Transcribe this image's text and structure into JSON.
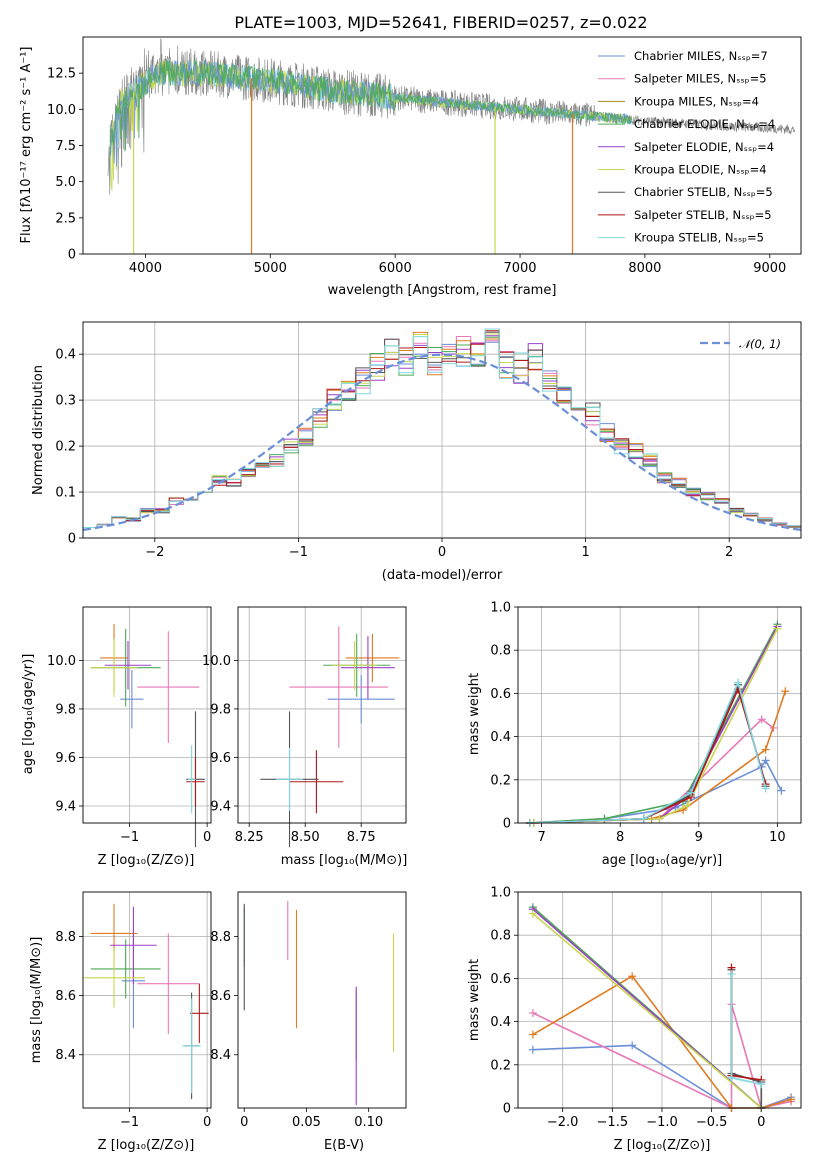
{
  "figure": {
    "title": "PLATE=1003, MJD=52641, FIBERID=0257, z=0.022"
  },
  "colors": {
    "model_palette": [
      "#6a8fd8",
      "#e878b8",
      "#a88c1a",
      "#4caa56",
      "#9a40c8",
      "#c8d650",
      "#555555",
      "#b01818",
      "#80d8e0"
    ],
    "data_spectrum": "#808080",
    "orange_series": "#e07b20",
    "grid": "#b0b0b0"
  },
  "chart_data": [
    {
      "id": "spectrum",
      "type": "line",
      "xlabel": "wavelength [Angstrom, rest frame]",
      "ylabel": "Flux [fλ10⁻¹⁷ erg cm⁻² s⁻¹ A⁻¹]",
      "xlim": [
        3500,
        9250
      ],
      "ylim": [
        0,
        15
      ],
      "xticks": [
        4000,
        5000,
        6000,
        7000,
        8000,
        9000
      ],
      "yticks": [
        0.0,
        2.5,
        5.0,
        7.5,
        10.0,
        12.5
      ],
      "grid": false,
      "legend_position": "upper right",
      "legend": [
        "Chabrier MILES, N_SSP=7",
        "Salpeter MILES, N_SSP=5",
        "Kroupa MILES, N_SSP=4",
        "Chabrier ELODIE, N_SSP=4",
        "Salpeter ELODIE, N_SSP=4",
        "Kroupa ELODIE, N_SSP=4",
        "Chabrier STELIB, N_SSP=5",
        "Salpeter STELIB, N_SSP=5",
        "Kroupa STELIB, N_SSP=5"
      ],
      "series": [
        {
          "values": [
            [
              3700,
              7.0
            ],
            [
              3800,
              10.5
            ],
            [
              3950,
              11.5
            ],
            [
              4100,
              12.5
            ],
            [
              4500,
              12.5
            ],
            [
              5000,
              12.0
            ],
            [
              5500,
              11.3
            ],
            [
              6000,
              10.8
            ],
            [
              6500,
              10.4
            ],
            [
              7000,
              10.0
            ],
            [
              7500,
              9.6
            ],
            [
              8000,
              9.2
            ],
            [
              8500,
              8.9
            ],
            [
              9000,
              8.7
            ],
            [
              9200,
              8.6
            ]
          ]
        }
      ]
    },
    {
      "id": "residuals",
      "type": "bar",
      "xlabel": "(data-model)/error",
      "ylabel": "Normed distribution",
      "xlim": [
        -2.5,
        2.5
      ],
      "ylim": [
        0,
        0.47
      ],
      "xticks": [
        -2,
        -1,
        0,
        1,
        2
      ],
      "yticks": [
        0.0,
        0.1,
        0.2,
        0.3,
        0.4
      ],
      "grid": true,
      "legend_position": "upper right",
      "legend": [
        "𝒩(0, 1)"
      ],
      "bin_edges": [
        -2.5,
        -2.4,
        -2.3,
        -2.2,
        -2.1,
        -2.0,
        -1.9,
        -1.8,
        -1.7,
        -1.6,
        -1.5,
        -1.4,
        -1.3,
        -1.2,
        -1.1,
        -1.0,
        -0.9,
        -0.8,
        -0.7,
        -0.6,
        -0.5,
        -0.4,
        -0.3,
        -0.2,
        -0.1,
        0.0,
        0.1,
        0.2,
        0.3,
        0.4,
        0.5,
        0.6,
        0.7,
        0.8,
        0.9,
        1.0,
        1.1,
        1.2,
        1.3,
        1.4,
        1.5,
        1.6,
        1.7,
        1.8,
        1.9,
        2.0,
        2.1,
        2.2,
        2.3,
        2.4,
        2.5
      ],
      "histogram_values": [
        0.025,
        0.03,
        0.045,
        0.04,
        0.06,
        0.06,
        0.08,
        0.085,
        0.1,
        0.125,
        0.12,
        0.14,
        0.165,
        0.17,
        0.2,
        0.22,
        0.26,
        0.3,
        0.32,
        0.34,
        0.37,
        0.4,
        0.38,
        0.42,
        0.39,
        0.4,
        0.41,
        0.4,
        0.42,
        0.38,
        0.37,
        0.39,
        0.34,
        0.32,
        0.3,
        0.27,
        0.23,
        0.2,
        0.19,
        0.17,
        0.13,
        0.12,
        0.1,
        0.09,
        0.08,
        0.06,
        0.05,
        0.04,
        0.03,
        0.025
      ]
    },
    {
      "id": "age_vs_Z",
      "type": "scatter",
      "xlabel": "Z [log₁₀(Z/Z⊙)]",
      "ylabel": "age  [log₁₀(age/yr)]",
      "xlim": [
        -1.6,
        0.05
      ],
      "ylim": [
        9.33,
        10.22
      ],
      "xticks": [
        -1,
        0
      ],
      "yticks": [
        9.4,
        9.6,
        9.8,
        10.0
      ],
      "grid": true,
      "points": [
        {
          "x": -0.97,
          "y": 9.84,
          "xerr": 0.15,
          "yerr": 0.12
        },
        {
          "x": -0.5,
          "y": 9.89,
          "xerr": 0.4,
          "yerr": 0.23
        },
        {
          "x": -1.2,
          "y": 10.01,
          "xerr": 0.18,
          "yerr": 0.14
        },
        {
          "x": -1.05,
          "y": 9.97,
          "xerr": 0.45,
          "yerr": 0.16
        },
        {
          "x": -1.02,
          "y": 9.98,
          "xerr": 0.3,
          "yerr": 0.1
        },
        {
          "x": -1.2,
          "y": 9.97,
          "xerr": 0.3,
          "yerr": 0.12
        },
        {
          "x": -0.15,
          "y": 9.51,
          "xerr": 0.12,
          "yerr": 0.28
        },
        {
          "x": -0.15,
          "y": 9.5,
          "xerr": 0.12,
          "yerr": 0.1
        },
        {
          "x": -0.2,
          "y": 9.51,
          "xerr": 0.05,
          "yerr": 0.14
        }
      ]
    },
    {
      "id": "age_vs_mass",
      "type": "scatter",
      "xlabel": "mass [log₁₀(M/M⊙)]",
      "ylabel": "",
      "xlim": [
        8.2,
        8.95
      ],
      "ylim": [
        9.33,
        10.22
      ],
      "xticks": [
        8.25,
        8.5,
        8.75
      ],
      "yticks": [
        9.4,
        9.6,
        9.8,
        10.0
      ],
      "grid": true,
      "points": [
        {
          "x": 8.75,
          "y": 9.84,
          "xerr": 0.15,
          "yerr": 0.1
        },
        {
          "x": 8.65,
          "y": 9.89,
          "xerr": 0.22,
          "yerr": 0.25
        },
        {
          "x": 8.8,
          "y": 10.01,
          "xerr": 0.12,
          "yerr": 0.1
        },
        {
          "x": 8.73,
          "y": 9.98,
          "xerr": 0.15,
          "yerr": 0.13
        },
        {
          "x": 8.78,
          "y": 9.97,
          "xerr": 0.12,
          "yerr": 0.13
        },
        {
          "x": 8.72,
          "y": 9.98,
          "xerr": 0.1,
          "yerr": 0.1
        },
        {
          "x": 8.43,
          "y": 9.51,
          "xerr": 0.13,
          "yerr": 0.28
        },
        {
          "x": 8.55,
          "y": 9.5,
          "xerr": 0.12,
          "yerr": 0.13
        },
        {
          "x": 8.43,
          "y": 9.51,
          "xerr": 0.06,
          "yerr": 0.13
        }
      ]
    },
    {
      "id": "weight_vs_age",
      "type": "line",
      "xlabel": "age  [log₁₀(age/yr)]",
      "ylabel": "mass weight",
      "xlim": [
        6.7,
        10.3
      ],
      "ylim": [
        0,
        1
      ],
      "xticks": [
        7,
        8,
        9,
        10
      ],
      "yticks": [
        0.0,
        0.2,
        0.4,
        0.6,
        0.8,
        1.0
      ],
      "grid": true,
      "series": [
        {
          "x": [
            6.85,
            7.8,
            8.7,
            9.8,
            9.85,
            10.05
          ],
          "y": [
            0.0,
            0.02,
            0.07,
            0.26,
            0.29,
            0.15
          ]
        },
        {
          "x": [
            6.9,
            8.5,
            9.8,
            9.95
          ],
          "y": [
            0.0,
            0.02,
            0.48,
            0.44
          ]
        },
        {
          "x": [
            6.9,
            8.4,
            8.8,
            9.85,
            10.1
          ],
          "y": [
            0.0,
            0.02,
            0.06,
            0.34,
            0.61
          ]
        },
        {
          "x": [
            6.85,
            7.8,
            8.8,
            10.0
          ],
          "y": [
            0.0,
            0.02,
            0.1,
            0.92
          ]
        },
        {
          "x": [
            6.9,
            8.5,
            8.85,
            10.0
          ],
          "y": [
            0.0,
            0.02,
            0.12,
            0.91
          ]
        },
        {
          "x": [
            6.9,
            8.5,
            8.85,
            10.0
          ],
          "y": [
            0.0,
            0.02,
            0.08,
            0.9
          ]
        },
        {
          "x": [
            6.85,
            8.3,
            8.9,
            9.5,
            9.85
          ],
          "y": [
            0.0,
            0.02,
            0.13,
            0.64,
            0.17
          ]
        },
        {
          "x": [
            6.85,
            8.3,
            8.9,
            9.5,
            9.85
          ],
          "y": [
            0.0,
            0.02,
            0.12,
            0.62,
            0.18
          ]
        },
        {
          "x": [
            6.85,
            8.3,
            8.9,
            9.5,
            9.85
          ],
          "y": [
            0.0,
            0.02,
            0.14,
            0.65,
            0.16
          ]
        }
      ]
    },
    {
      "id": "mass_vs_Z",
      "type": "scatter",
      "xlabel": "Z [log₁₀(Z/Z⊙)]",
      "ylabel": "mass [log₁₀(M/M⊙)]",
      "xlim": [
        -1.6,
        0.05
      ],
      "ylim": [
        8.22,
        8.95
      ],
      "xticks": [
        -1,
        0
      ],
      "yticks": [
        8.4,
        8.6,
        8.8
      ],
      "grid": true,
      "points": [
        {
          "x": -0.95,
          "y": 8.65,
          "xerr": 0.15,
          "yerr": 0.16
        },
        {
          "x": -0.5,
          "y": 8.64,
          "xerr": 0.4,
          "yerr": 0.17
        },
        {
          "x": -1.2,
          "y": 8.81,
          "xerr": 0.3,
          "yerr": 0.1
        },
        {
          "x": -1.05,
          "y": 8.69,
          "xerr": 0.45,
          "yerr": 0.1
        },
        {
          "x": -0.95,
          "y": 8.77,
          "xerr": 0.3,
          "yerr": 0.13
        },
        {
          "x": -1.2,
          "y": 8.66,
          "xerr": 0.4,
          "yerr": 0.1
        },
        {
          "x": -0.2,
          "y": 8.43,
          "xerr": 0.1,
          "yerr": 0.18
        },
        {
          "x": -0.1,
          "y": 8.54,
          "xerr": 0.12,
          "yerr": 0.1
        },
        {
          "x": -0.2,
          "y": 8.43,
          "xerr": 0.12,
          "yerr": 0.16
        }
      ]
    },
    {
      "id": "mass_vs_EBV",
      "type": "scatter",
      "xlabel": "E(B-V)",
      "ylabel": "",
      "xlim": [
        -0.005,
        0.13
      ],
      "ylim": [
        8.22,
        8.95
      ],
      "xticks": [
        0.0,
        0.05,
        0.1
      ],
      "yticks": [
        8.4,
        8.6,
        8.8
      ],
      "grid": false,
      "points": [
        {
          "x": 0.0,
          "y": 8.8,
          "xerr": 0,
          "yerr": 0.1
        },
        {
          "x": 0.035,
          "y": 8.82,
          "xerr": 0,
          "yerr": 0.1
        },
        {
          "x": 0.042,
          "y": 8.69,
          "xerr": 0,
          "yerr": 0.2
        },
        {
          "x": 0.09,
          "y": 8.5,
          "xerr": 0,
          "yerr": 0.12
        },
        {
          "x": 0.09,
          "y": 8.43,
          "xerr": 0,
          "yerr": 0.2
        },
        {
          "x": 0.12,
          "y": 8.61,
          "xerr": 0,
          "yerr": 0.2
        },
        {
          "x": 0.0,
          "y": 8.73,
          "xerr": 0,
          "yerr": 0.18
        }
      ]
    },
    {
      "id": "weight_vs_Z",
      "type": "line",
      "xlabel": "Z [log₁₀(Z/Z⊙)]",
      "ylabel": "mass weight",
      "xlim": [
        -2.45,
        0.4
      ],
      "ylim": [
        0,
        1
      ],
      "xticks": [
        -2.0,
        -1.5,
        -1.0,
        -0.5,
        0.0
      ],
      "yticks": [
        0.0,
        0.2,
        0.4,
        0.6,
        0.8,
        1.0
      ],
      "grid": true,
      "series": [
        {
          "x": [
            -2.3,
            -1.3,
            -0.3,
            -0.3,
            0.0,
            0.3
          ],
          "y": [
            0.27,
            0.29,
            0.0,
            0.0,
            0.0,
            0.05
          ]
        },
        {
          "x": [
            -2.3,
            -0.3,
            -0.3,
            0.0,
            0.3
          ],
          "y": [
            0.44,
            0.0,
            0.48,
            0.0,
            0.03
          ]
        },
        {
          "x": [
            -2.3,
            -1.3,
            -0.3,
            0.0,
            0.3
          ],
          "y": [
            0.34,
            0.61,
            0.0,
            0.0,
            0.04
          ]
        },
        {
          "x": [
            -2.3,
            0.0
          ],
          "y": [
            0.93,
            0.0
          ]
        },
        {
          "x": [
            -2.3,
            0.0
          ],
          "y": [
            0.92,
            0.0
          ]
        },
        {
          "x": [
            -2.3,
            0.0
          ],
          "y": [
            0.9,
            0.0
          ]
        },
        {
          "x": [
            -0.3,
            -0.3,
            0.0,
            0.0
          ],
          "y": [
            0.64,
            0.16,
            0.12,
            0.0
          ]
        },
        {
          "x": [
            -0.3,
            -0.3,
            0.0
          ],
          "y": [
            0.65,
            0.15,
            0.13
          ]
        },
        {
          "x": [
            -0.3,
            -0.3,
            0.0
          ],
          "y": [
            0.62,
            0.14,
            0.11
          ]
        }
      ]
    }
  ]
}
